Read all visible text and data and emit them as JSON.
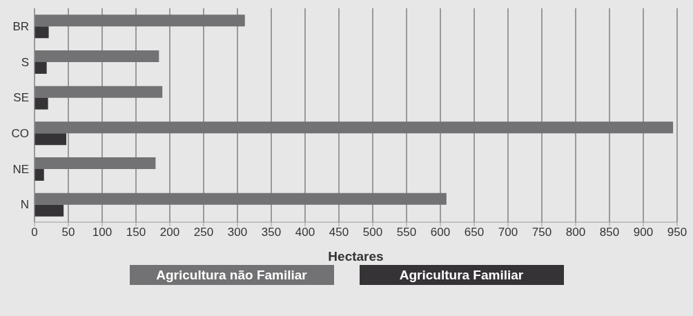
{
  "chart_data": {
    "type": "bar",
    "orientation": "horizontal",
    "xlabel": "Hectares",
    "categories": [
      "BR",
      "S",
      "SE",
      "CO",
      "NE",
      "N"
    ],
    "series": [
      {
        "name": "Agricultura não Familiar",
        "color": "#727274",
        "values": [
          311,
          184,
          189,
          944,
          179,
          609
        ]
      },
      {
        "name": "Agricultura Familiar",
        "color": "#363336",
        "values": [
          21,
          18,
          20,
          47,
          14,
          43
        ]
      }
    ],
    "xlim": [
      0,
      950
    ],
    "xticks": [
      0,
      50,
      100,
      150,
      200,
      250,
      300,
      350,
      400,
      450,
      500,
      550,
      600,
      650,
      700,
      750,
      800,
      850,
      900,
      950
    ],
    "grid": "x",
    "legend": "bottom"
  }
}
